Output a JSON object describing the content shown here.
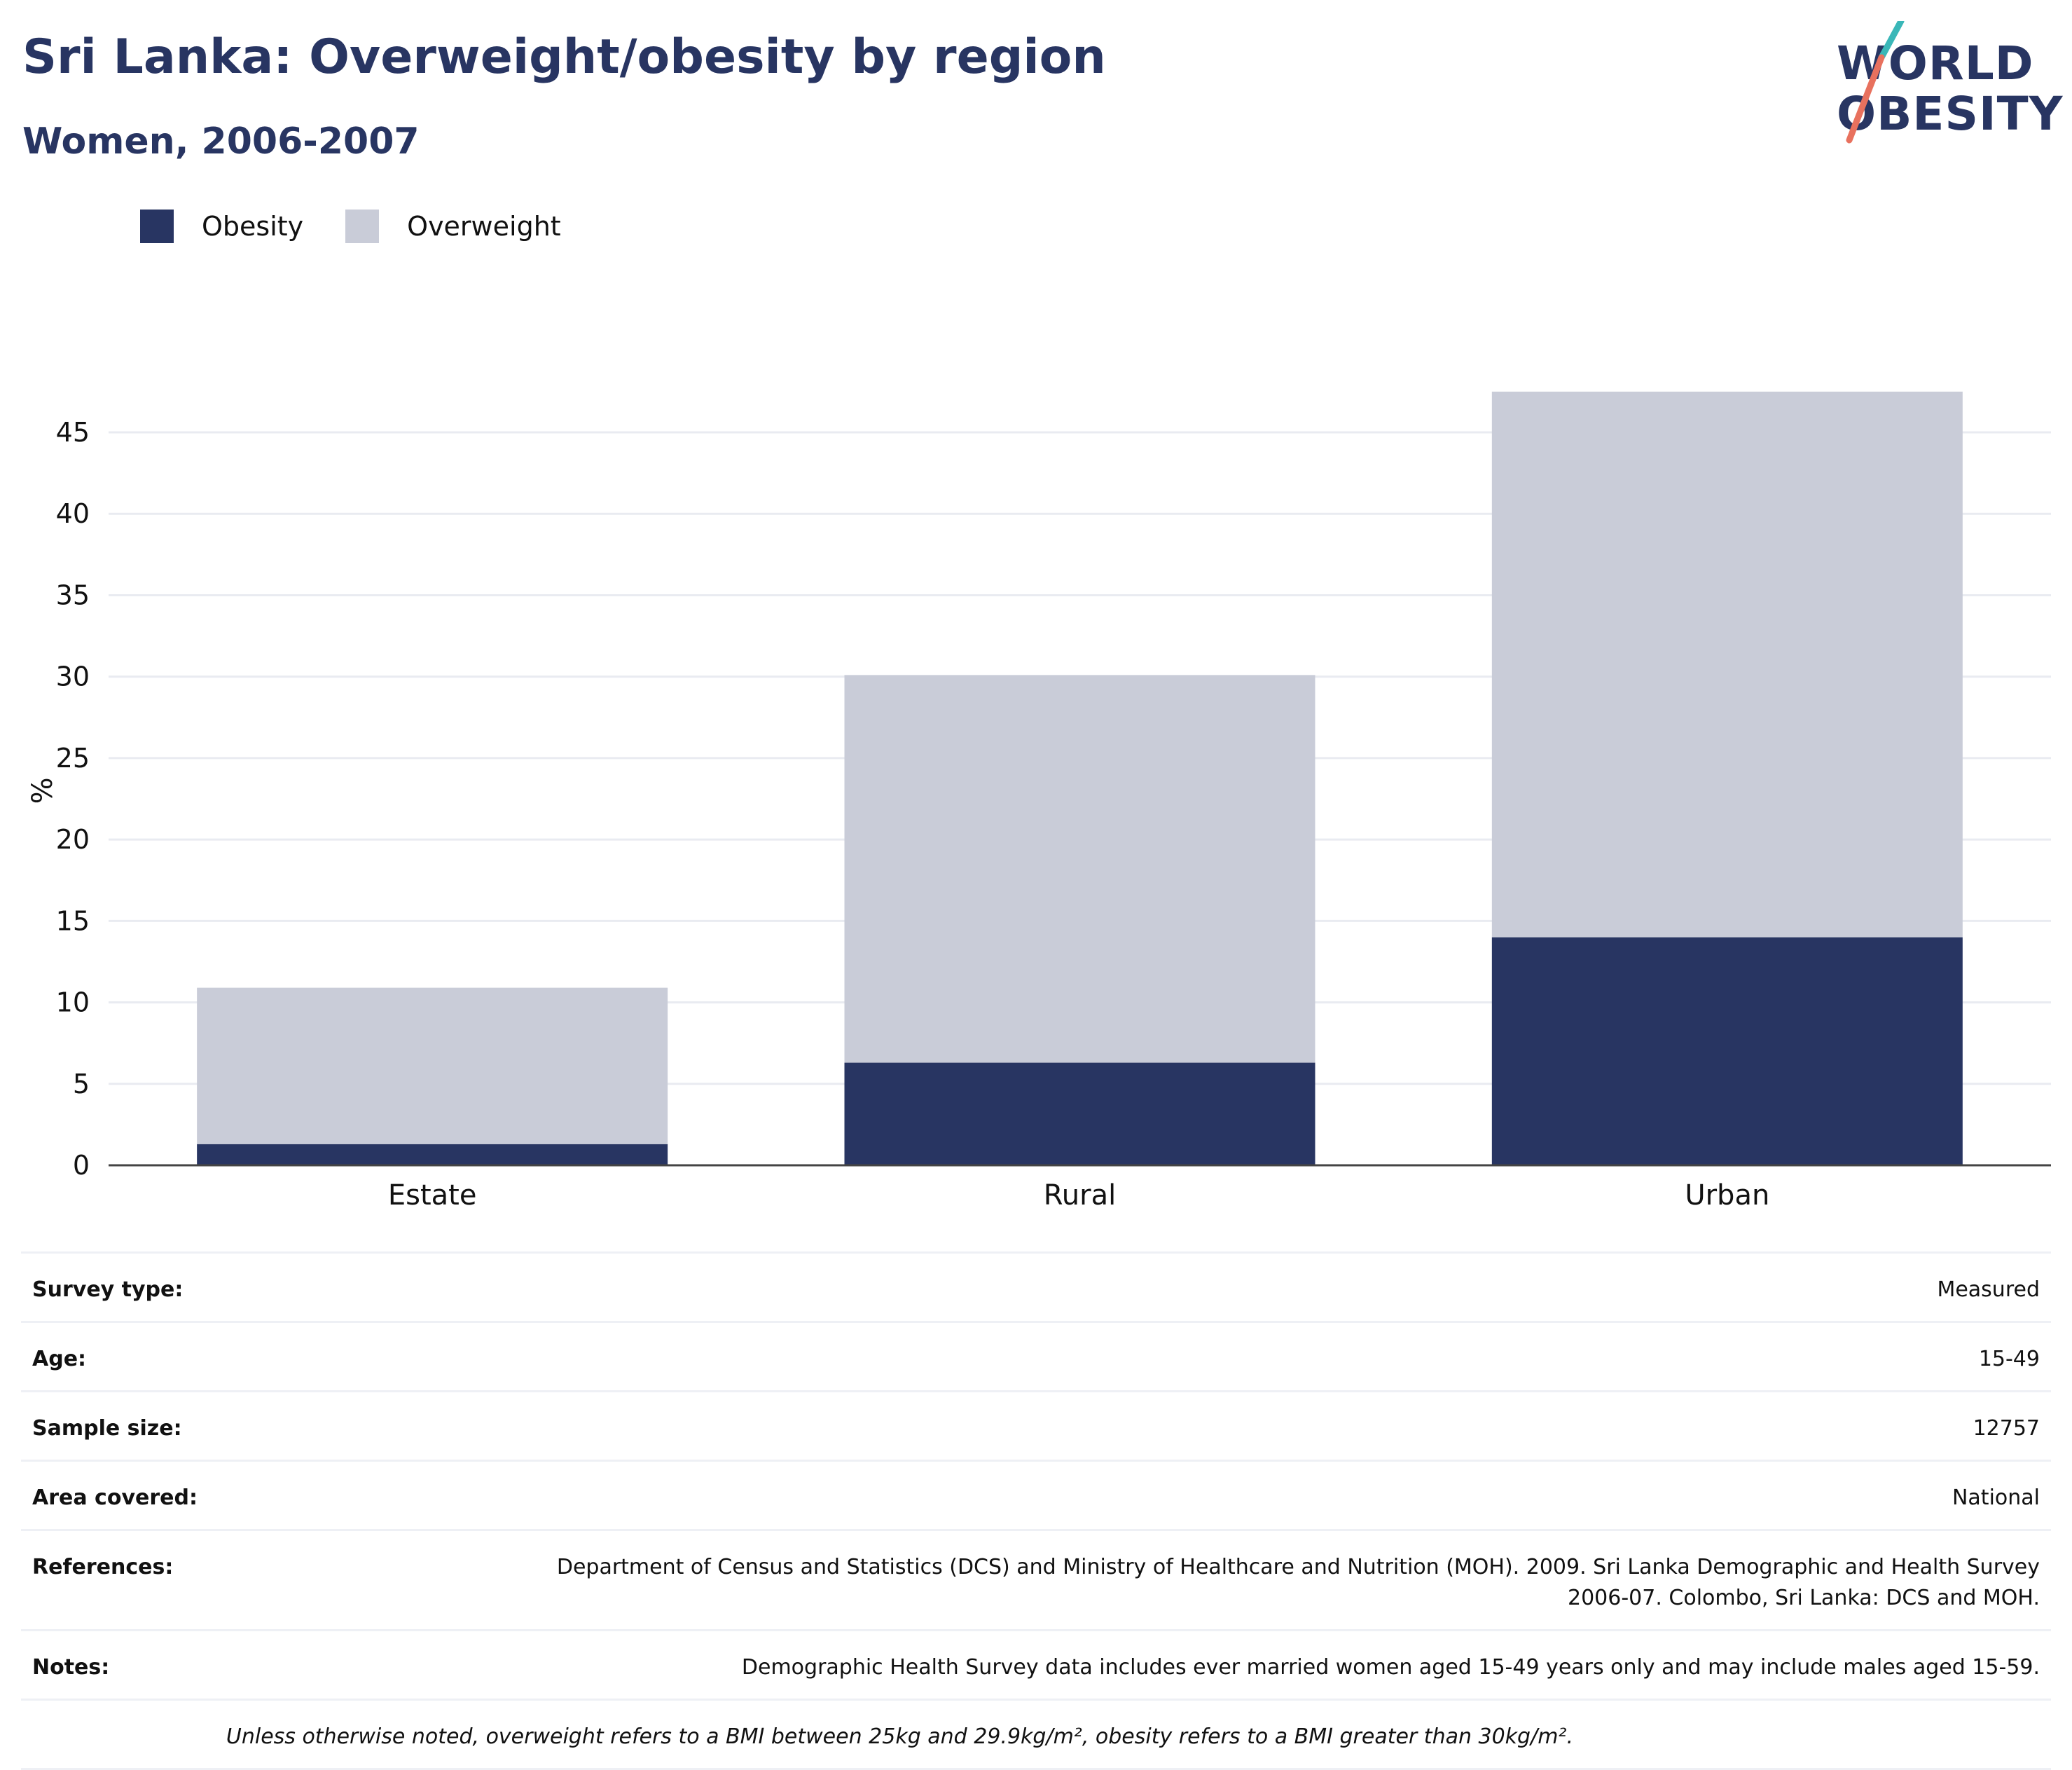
{
  "header": {
    "title": "Sri Lanka: Overweight/obesity by region",
    "subtitle": "Women, 2006-2007"
  },
  "logo": {
    "line1": "WORLD",
    "line2": "OBESITY"
  },
  "colors": {
    "obesity": "#283562",
    "overweight": "#c9ccd8",
    "accent_teal": "#3ab7b8",
    "accent_coral": "#e8715e"
  },
  "chart_data": {
    "type": "bar",
    "stacked": true,
    "categories": [
      "Estate",
      "Rural",
      "Urban"
    ],
    "series": [
      {
        "name": "Obesity",
        "values": [
          1.3,
          6.3,
          14.0
        ]
      },
      {
        "name": "Overweight",
        "values": [
          9.6,
          23.8,
          33.5
        ]
      }
    ],
    "ylabel": "%",
    "ylim": [
      0,
      47.5
    ],
    "yticks": [
      0,
      5,
      10,
      15,
      20,
      25,
      30,
      35,
      40,
      45
    ],
    "grid": true,
    "legend_position": "top-left"
  },
  "details": [
    {
      "label": "Survey type:",
      "value": "Measured"
    },
    {
      "label": "Age:",
      "value": "15-49"
    },
    {
      "label": "Sample size:",
      "value": "12757"
    },
    {
      "label": "Area covered:",
      "value": "National"
    },
    {
      "label": "References:",
      "value": "Department of Census and Statistics (DCS) and Ministry of Healthcare and Nutrition (MOH). 2009. Sri Lanka Demographic and Health Survey 2006-07. Colombo, Sri Lanka: DCS and MOH."
    },
    {
      "label": "Notes:",
      "value": "Demographic Health Survey data includes ever married women aged 15-49 years only and may include males aged 15-59."
    }
  ],
  "footnote": "Unless otherwise noted, overweight refers to a BMI between 25kg and 29.9kg/m², obesity refers to a BMI greater than 30kg/m²."
}
